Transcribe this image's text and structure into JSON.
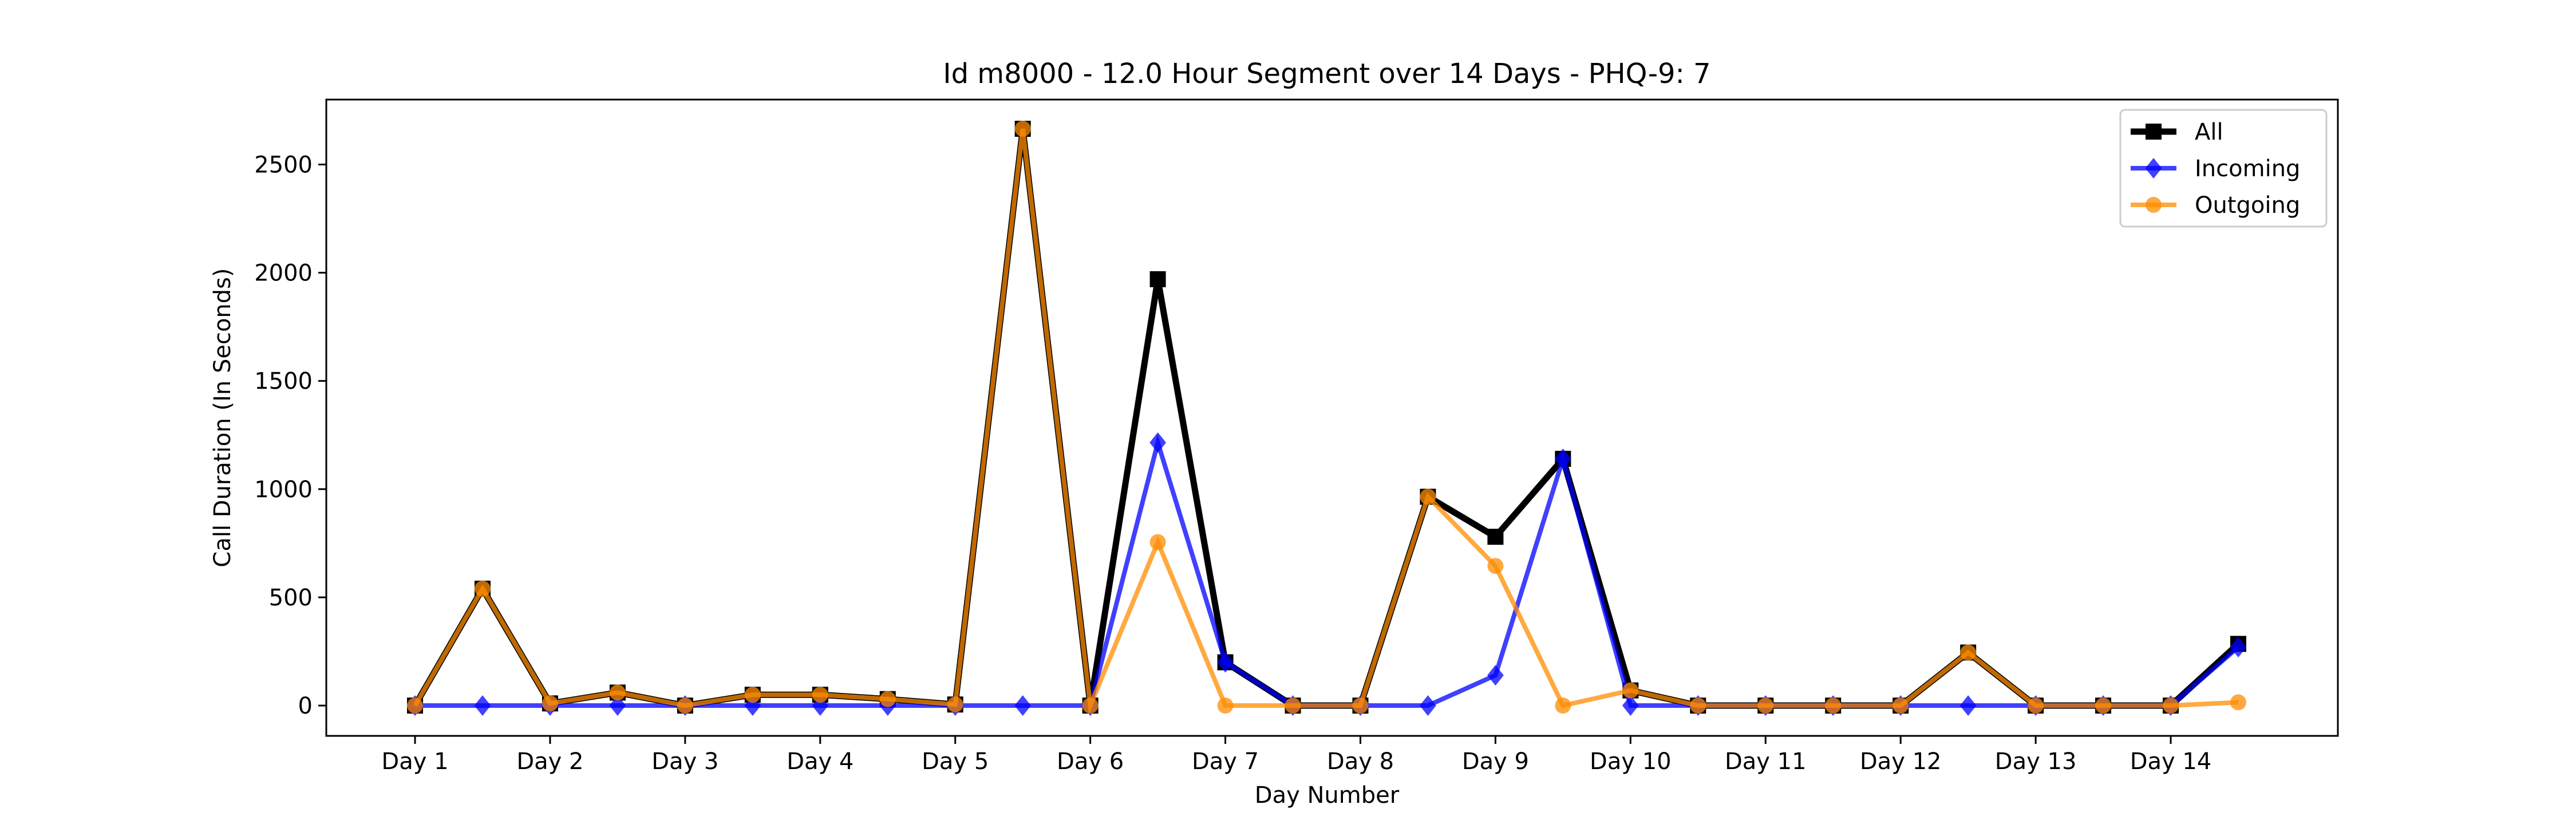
{
  "chart_data": {
    "type": "line",
    "title": "Id m8000 - 12.0 Hour Segment over 14 Days - PHQ-9: 7",
    "xlabel": "Day Number",
    "ylabel": "Call Duration (In Seconds)",
    "x_tick_labels": [
      "Day 1",
      "Day 2",
      "Day 3",
      "Day 4",
      "Day 5",
      "Day 6",
      "Day 7",
      "Day 8",
      "Day 9",
      "Day 10",
      "Day 11",
      "Day 12",
      "Day 13",
      "Day 14"
    ],
    "y_ticks": [
      0,
      500,
      1000,
      1500,
      2000,
      2500
    ],
    "ylim": [
      -140,
      2800
    ],
    "legend_position": "upper-right",
    "grid": false,
    "series": [
      {
        "name": "All",
        "color": "#000000",
        "marker": "square",
        "values": [
          0,
          540,
          10,
          60,
          0,
          50,
          50,
          30,
          5,
          2665,
          0,
          1970,
          200,
          0,
          0,
          965,
          780,
          1140,
          70,
          0,
          0,
          0,
          0,
          245,
          0,
          0,
          0,
          285
        ]
      },
      {
        "name": "Incoming",
        "color": "#0000ff",
        "marker": "diamond",
        "values": [
          0,
          0,
          0,
          0,
          0,
          0,
          0,
          0,
          0,
          0,
          0,
          1215,
          200,
          0,
          0,
          0,
          140,
          1140,
          0,
          0,
          0,
          0,
          0,
          0,
          0,
          0,
          0,
          270
        ]
      },
      {
        "name": "Outgoing",
        "color": "#ff8c00",
        "marker": "circle",
        "values": [
          0,
          540,
          10,
          60,
          0,
          50,
          50,
          30,
          5,
          2665,
          0,
          755,
          0,
          0,
          0,
          965,
          645,
          0,
          70,
          0,
          0,
          0,
          0,
          245,
          0,
          0,
          0,
          15
        ]
      }
    ]
  }
}
